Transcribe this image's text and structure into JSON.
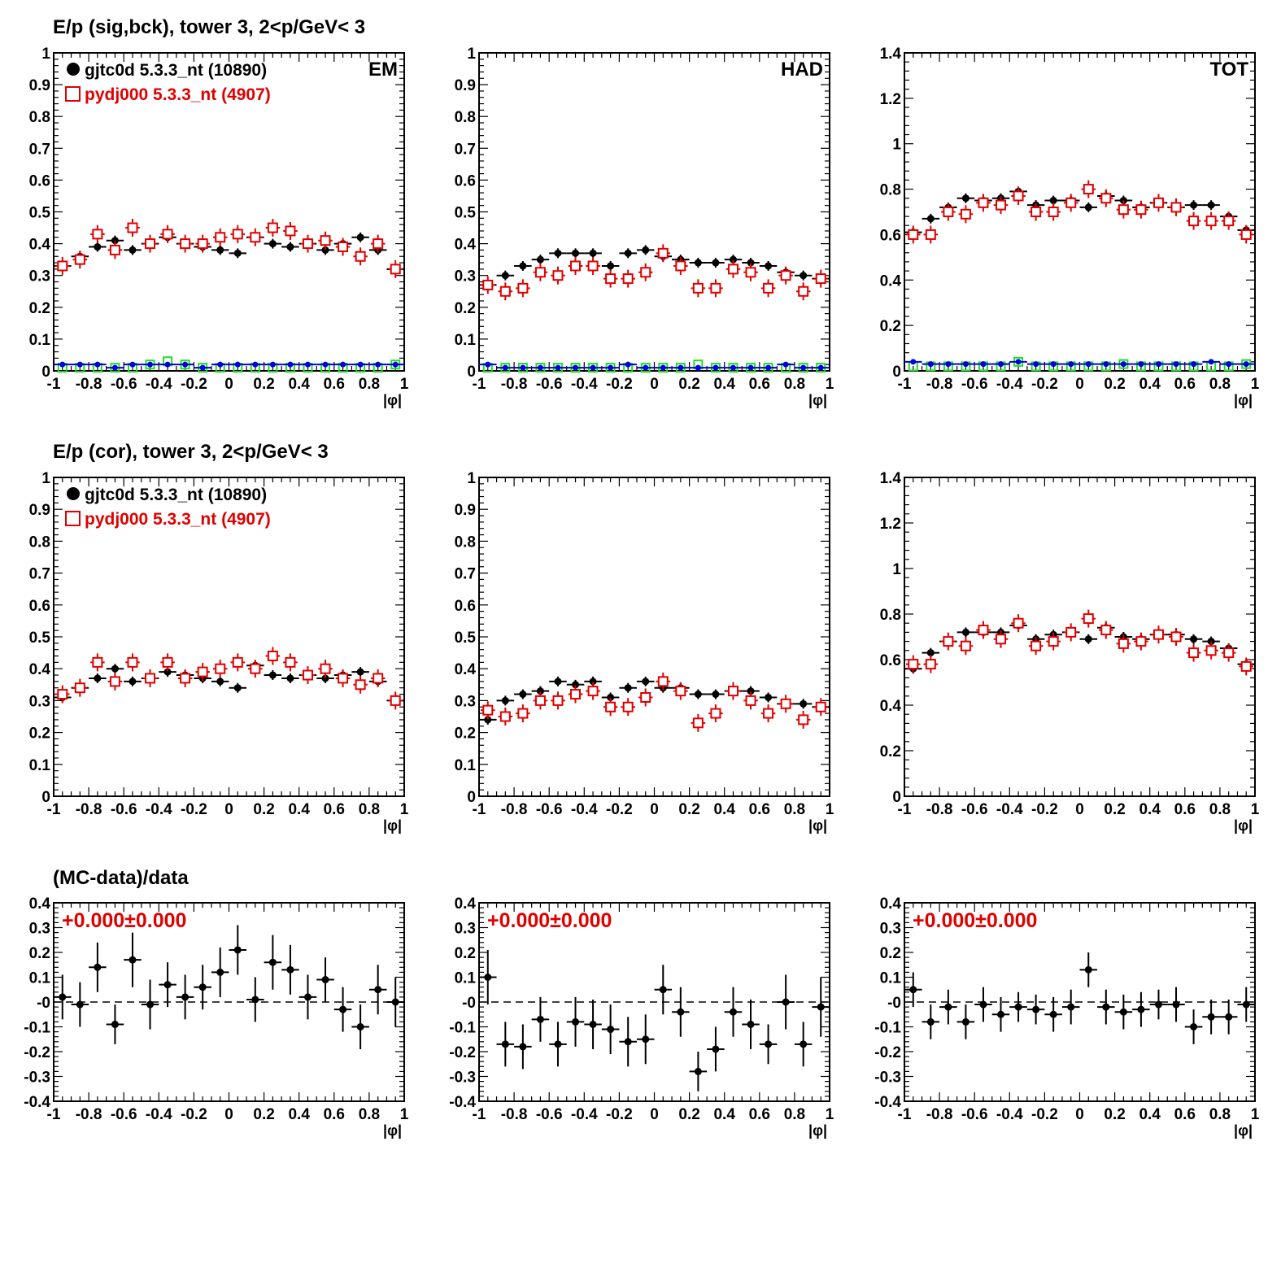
{
  "rows": [
    {
      "title": "E/p (sig,bck), tower 3,  2<p/GeV< 3"
    },
    {
      "title": "E/p (cor), tower 3,  2<p/GeV< 3"
    },
    {
      "title": "(MC-data)/data"
    }
  ],
  "legend": {
    "data_label": "gjtc0d 5.3.3_nt (10890)",
    "mc_label": "pydj000 5.3.3_nt (4907)"
  },
  "colors": {
    "data": "#000000",
    "mc": "#e00000",
    "bkg_data": "#0000dd",
    "bkg_mc": "#22dd22",
    "ratio_text": "#e00000"
  },
  "chart_data": [
    {
      "type": "scatter",
      "row": 0,
      "col": 0,
      "panel_label": "EM",
      "xlabel": "|φ|",
      "xlim": [
        -1,
        1
      ],
      "ylim": [
        0,
        1
      ],
      "x_ticks": [
        "-1",
        "-0.8",
        "-0.6",
        "-0.4",
        "-0.2",
        "0",
        "0.2",
        "0.4",
        "0.6",
        "0.8",
        "1"
      ],
      "y_ticks": [
        "0",
        "0.1",
        "0.2",
        "0.3",
        "0.4",
        "0.5",
        "0.6",
        "0.7",
        "0.8",
        "0.9",
        "1"
      ],
      "legend": true,
      "series": [
        {
          "name": "gjtc0d 5.3.3_nt (10890)",
          "role": "data",
          "values": [
            0.33,
            0.36,
            0.39,
            0.41,
            0.38,
            0.4,
            0.42,
            0.4,
            0.39,
            0.38,
            0.37,
            0.42,
            0.4,
            0.39,
            0.4,
            0.38,
            0.4,
            0.42,
            0.38,
            0.32
          ]
        },
        {
          "name": "pydj000 5.3.3_nt (4907)",
          "role": "mc",
          "values": [
            0.33,
            0.35,
            0.43,
            0.38,
            0.45,
            0.4,
            0.43,
            0.4,
            0.4,
            0.42,
            0.43,
            0.42,
            0.45,
            0.44,
            0.4,
            0.41,
            0.39,
            0.36,
            0.4,
            0.32
          ]
        },
        {
          "role": "bkg_data",
          "values": [
            0.02,
            0.02,
            0.02,
            0.01,
            0.02,
            0.02,
            0.02,
            0.02,
            0.01,
            0.02,
            0.02,
            0.02,
            0.02,
            0.02,
            0.02,
            0.02,
            0.02,
            0.02,
            0.02,
            0.02
          ]
        },
        {
          "role": "bkg_mc",
          "values": [
            0.01,
            0.01,
            0.01,
            0.01,
            0.01,
            0.02,
            0.03,
            0.02,
            0.01,
            0.01,
            0.01,
            0.01,
            0.01,
            0.01,
            0.01,
            0.01,
            0.01,
            0.01,
            0.01,
            0.02
          ]
        }
      ]
    },
    {
      "type": "scatter",
      "row": 0,
      "col": 1,
      "panel_label": "HAD",
      "xlabel": "|φ|",
      "xlim": [
        -1,
        1
      ],
      "ylim": [
        0,
        1
      ],
      "x_ticks": [
        "-1",
        "-0.8",
        "-0.6",
        "-0.4",
        "-0.2",
        "0",
        "0.2",
        "0.4",
        "0.6",
        "0.8",
        "1"
      ],
      "y_ticks": [
        "0",
        "0.1",
        "0.2",
        "0.3",
        "0.4",
        "0.5",
        "0.6",
        "0.7",
        "0.8",
        "0.9",
        "1"
      ],
      "legend": false,
      "series": [
        {
          "name": "gjtc0d 5.3.3_nt (10890)",
          "role": "data",
          "values": [
            0.27,
            0.3,
            0.33,
            0.35,
            0.37,
            0.37,
            0.37,
            0.33,
            0.37,
            0.38,
            0.36,
            0.35,
            0.34,
            0.34,
            0.35,
            0.34,
            0.33,
            0.31,
            0.3,
            0.29
          ]
        },
        {
          "name": "pydj000 5.3.3_nt (4907)",
          "role": "mc",
          "values": [
            0.27,
            0.25,
            0.26,
            0.31,
            0.3,
            0.33,
            0.33,
            0.29,
            0.29,
            0.31,
            0.37,
            0.33,
            0.26,
            0.26,
            0.32,
            0.31,
            0.26,
            0.3,
            0.25,
            0.29
          ]
        },
        {
          "role": "bkg_data",
          "values": [
            0.02,
            0.01,
            0.01,
            0.01,
            0.01,
            0.01,
            0.01,
            0.01,
            0.02,
            0.01,
            0.01,
            0.01,
            0.01,
            0.01,
            0.01,
            0.01,
            0.01,
            0.02,
            0.01,
            0.01
          ]
        },
        {
          "role": "bkg_mc",
          "values": [
            0.01,
            0.01,
            0.01,
            0.01,
            0.01,
            0.01,
            0.01,
            0.01,
            0.01,
            0.01,
            0.01,
            0.01,
            0.02,
            0.01,
            0.01,
            0.01,
            0.01,
            0.01,
            0.01,
            0.01
          ]
        }
      ]
    },
    {
      "type": "scatter",
      "row": 0,
      "col": 2,
      "panel_label": "TOT",
      "xlabel": "|φ|",
      "xlim": [
        -1,
        1
      ],
      "ylim": [
        0,
        1.4
      ],
      "x_ticks": [
        "-1",
        "-0.8",
        "-0.6",
        "-0.4",
        "-0.2",
        "0",
        "0.2",
        "0.4",
        "0.6",
        "0.8",
        "1"
      ],
      "y_ticks": [
        "0",
        "0.2",
        "0.4",
        "0.6",
        "0.8",
        "1",
        "1.2",
        "1.4"
      ],
      "legend": false,
      "series": [
        {
          "name": "gjtc0d 5.3.3_nt (10890)",
          "role": "data",
          "values": [
            0.61,
            0.67,
            0.72,
            0.76,
            0.75,
            0.76,
            0.79,
            0.73,
            0.75,
            0.75,
            0.72,
            0.77,
            0.75,
            0.72,
            0.74,
            0.72,
            0.73,
            0.73,
            0.68,
            0.62
          ]
        },
        {
          "name": "pydj000 5.3.3_nt (4907)",
          "role": "mc",
          "values": [
            0.6,
            0.6,
            0.7,
            0.69,
            0.74,
            0.73,
            0.77,
            0.7,
            0.7,
            0.74,
            0.8,
            0.76,
            0.71,
            0.71,
            0.74,
            0.72,
            0.66,
            0.66,
            0.66,
            0.6
          ]
        },
        {
          "role": "bkg_data",
          "values": [
            0.04,
            0.03,
            0.03,
            0.03,
            0.03,
            0.03,
            0.04,
            0.03,
            0.03,
            0.03,
            0.03,
            0.03,
            0.03,
            0.03,
            0.03,
            0.03,
            0.03,
            0.04,
            0.03,
            0.03
          ]
        },
        {
          "role": "bkg_mc",
          "values": [
            0.02,
            0.02,
            0.02,
            0.02,
            0.02,
            0.02,
            0.04,
            0.02,
            0.02,
            0.02,
            0.02,
            0.02,
            0.03,
            0.02,
            0.02,
            0.02,
            0.02,
            0.02,
            0.02,
            0.03
          ]
        }
      ]
    },
    {
      "type": "scatter",
      "row": 1,
      "col": 0,
      "xlabel": "|φ|",
      "xlim": [
        -1,
        1
      ],
      "ylim": [
        0,
        1
      ],
      "x_ticks": [
        "-1",
        "-0.8",
        "-0.6",
        "-0.4",
        "-0.2",
        "0",
        "0.2",
        "0.4",
        "0.6",
        "0.8",
        "1"
      ],
      "y_ticks": [
        "0",
        "0.1",
        "0.2",
        "0.3",
        "0.4",
        "0.5",
        "0.6",
        "0.7",
        "0.8",
        "0.9",
        "1"
      ],
      "legend": true,
      "series": [
        {
          "name": "gjtc0d 5.3.3_nt (10890)",
          "role": "data",
          "values": [
            0.31,
            0.34,
            0.37,
            0.4,
            0.36,
            0.37,
            0.39,
            0.38,
            0.37,
            0.36,
            0.34,
            0.41,
            0.38,
            0.37,
            0.38,
            0.37,
            0.38,
            0.39,
            0.36,
            0.3
          ]
        },
        {
          "name": "pydj000 5.3.3_nt (4907)",
          "role": "mc",
          "values": [
            0.32,
            0.34,
            0.42,
            0.36,
            0.42,
            0.37,
            0.42,
            0.37,
            0.39,
            0.4,
            0.42,
            0.4,
            0.44,
            0.42,
            0.38,
            0.4,
            0.37,
            0.35,
            0.37,
            0.3
          ]
        }
      ]
    },
    {
      "type": "scatter",
      "row": 1,
      "col": 1,
      "xlabel": "|φ|",
      "xlim": [
        -1,
        1
      ],
      "ylim": [
        0,
        1
      ],
      "x_ticks": [
        "-1",
        "-0.8",
        "-0.6",
        "-0.4",
        "-0.2",
        "0",
        "0.2",
        "0.4",
        "0.6",
        "0.8",
        "1"
      ],
      "y_ticks": [
        "0",
        "0.1",
        "0.2",
        "0.3",
        "0.4",
        "0.5",
        "0.6",
        "0.7",
        "0.8",
        "0.9",
        "1"
      ],
      "legend": false,
      "series": [
        {
          "name": "gjtc0d 5.3.3_nt (10890)",
          "role": "data",
          "values": [
            0.24,
            0.3,
            0.32,
            0.33,
            0.36,
            0.35,
            0.36,
            0.31,
            0.34,
            0.36,
            0.34,
            0.34,
            0.32,
            0.32,
            0.33,
            0.33,
            0.31,
            0.29,
            0.29,
            0.28
          ]
        },
        {
          "name": "pydj000 5.3.3_nt (4907)",
          "role": "mc",
          "values": [
            0.27,
            0.25,
            0.26,
            0.3,
            0.3,
            0.32,
            0.33,
            0.28,
            0.28,
            0.31,
            0.36,
            0.33,
            0.23,
            0.26,
            0.33,
            0.3,
            0.26,
            0.29,
            0.24,
            0.28
          ]
        }
      ]
    },
    {
      "type": "scatter",
      "row": 1,
      "col": 2,
      "xlabel": "|φ|",
      "xlim": [
        -1,
        1
      ],
      "ylim": [
        0,
        1.4
      ],
      "x_ticks": [
        "-1",
        "-0.8",
        "-0.6",
        "-0.4",
        "-0.2",
        "0",
        "0.2",
        "0.4",
        "0.6",
        "0.8",
        "1"
      ],
      "y_ticks": [
        "0",
        "0.2",
        "0.4",
        "0.6",
        "0.8",
        "1",
        "1.2",
        "1.4"
      ],
      "legend": false,
      "series": [
        {
          "name": "gjtc0d 5.3.3_nt (10890)",
          "role": "data",
          "values": [
            0.56,
            0.63,
            0.68,
            0.72,
            0.72,
            0.72,
            0.75,
            0.69,
            0.71,
            0.72,
            0.69,
            0.74,
            0.7,
            0.69,
            0.71,
            0.71,
            0.69,
            0.68,
            0.65,
            0.58
          ]
        },
        {
          "name": "pydj000 5.3.3_nt (4907)",
          "role": "mc",
          "values": [
            0.58,
            0.58,
            0.68,
            0.66,
            0.73,
            0.69,
            0.76,
            0.66,
            0.68,
            0.72,
            0.78,
            0.73,
            0.67,
            0.68,
            0.71,
            0.7,
            0.63,
            0.64,
            0.63,
            0.57
          ]
        }
      ]
    },
    {
      "type": "scatter",
      "row": 2,
      "col": 0,
      "xlabel": "|φ|",
      "xlim": [
        -1,
        1
      ],
      "ylim": [
        -0.4,
        0.4
      ],
      "x_ticks": [
        "-1",
        "-0.8",
        "-0.6",
        "-0.4",
        "-0.2",
        "0",
        "0.2",
        "0.4",
        "0.6",
        "0.8",
        "1"
      ],
      "y_ticks": [
        "-0.4",
        "-0.3",
        "-0.2",
        "-0.1",
        "-0",
        "0.1",
        "0.2",
        "0.3",
        "0.4"
      ],
      "fit_text": "+0.000±0.000",
      "series": [
        {
          "role": "ratio",
          "values": [
            0.02,
            -0.01,
            0.14,
            -0.09,
            0.17,
            -0.01,
            0.07,
            0.02,
            0.06,
            0.12,
            0.21,
            0.01,
            0.16,
            0.13,
            0.02,
            0.09,
            -0.03,
            -0.1,
            0.05,
            0.0
          ],
          "errors": [
            0.09,
            0.09,
            0.1,
            0.08,
            0.11,
            0.1,
            0.09,
            0.09,
            0.09,
            0.1,
            0.1,
            0.09,
            0.11,
            0.1,
            0.09,
            0.09,
            0.09,
            0.09,
            0.1,
            0.1
          ]
        }
      ]
    },
    {
      "type": "scatter",
      "row": 2,
      "col": 1,
      "xlabel": "|φ|",
      "xlim": [
        -1,
        1
      ],
      "ylim": [
        -0.4,
        0.4
      ],
      "x_ticks": [
        "-1",
        "-0.8",
        "-0.6",
        "-0.4",
        "-0.2",
        "0",
        "0.2",
        "0.4",
        "0.6",
        "0.8",
        "1"
      ],
      "y_ticks": [
        "-0.4",
        "-0.3",
        "-0.2",
        "-0.1",
        "-0",
        "0.1",
        "0.2",
        "0.3",
        "0.4"
      ],
      "fit_text": "+0.000±0.000",
      "series": [
        {
          "role": "ratio",
          "values": [
            0.1,
            -0.17,
            -0.18,
            -0.07,
            -0.17,
            -0.08,
            -0.09,
            -0.11,
            -0.16,
            -0.15,
            0.05,
            -0.04,
            -0.28,
            -0.19,
            -0.04,
            -0.09,
            -0.17,
            0.0,
            -0.17,
            -0.02
          ],
          "errors": [
            0.11,
            0.09,
            0.09,
            0.09,
            0.09,
            0.1,
            0.1,
            0.1,
            0.1,
            0.1,
            0.1,
            0.1,
            0.08,
            0.09,
            0.1,
            0.1,
            0.08,
            0.11,
            0.09,
            0.12
          ]
        }
      ]
    },
    {
      "type": "scatter",
      "row": 2,
      "col": 2,
      "xlabel": "|φ|",
      "xlim": [
        -1,
        1
      ],
      "ylim": [
        -0.4,
        0.4
      ],
      "x_ticks": [
        "-1",
        "-0.8",
        "-0.6",
        "-0.4",
        "-0.2",
        "0",
        "0.2",
        "0.4",
        "0.6",
        "0.8",
        "1"
      ],
      "y_ticks": [
        "-0.4",
        "-0.3",
        "-0.2",
        "-0.1",
        "-0",
        "0.1",
        "0.2",
        "0.3",
        "0.4"
      ],
      "fit_text": "+0.000±0.000",
      "series": [
        {
          "role": "ratio",
          "values": [
            0.05,
            -0.08,
            -0.02,
            -0.08,
            -0.01,
            -0.05,
            -0.02,
            -0.03,
            -0.05,
            -0.02,
            0.13,
            -0.02,
            -0.04,
            -0.03,
            -0.01,
            -0.01,
            -0.1,
            -0.06,
            -0.06,
            -0.01
          ],
          "errors": [
            0.07,
            0.07,
            0.07,
            0.07,
            0.07,
            0.07,
            0.06,
            0.06,
            0.07,
            0.07,
            0.07,
            0.07,
            0.07,
            0.07,
            0.06,
            0.07,
            0.07,
            0.07,
            0.07,
            0.07
          ]
        }
      ]
    }
  ]
}
